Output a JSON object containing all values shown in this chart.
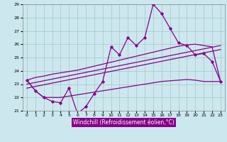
{
  "xlabel": "Windchill (Refroidissement éolien,°C)",
  "background_color": "#cce8ee",
  "grid_color": "#aacccc",
  "line_color": "#880088",
  "xlim": [
    -0.5,
    23.5
  ],
  "ylim": [
    21,
    29
  ],
  "yticks": [
    21,
    22,
    23,
    24,
    25,
    26,
    27,
    28,
    29
  ],
  "xticks": [
    0,
    1,
    2,
    3,
    4,
    5,
    6,
    7,
    8,
    9,
    10,
    11,
    12,
    13,
    14,
    15,
    16,
    17,
    18,
    19,
    20,
    21,
    22,
    23
  ],
  "hours": [
    0,
    1,
    2,
    3,
    4,
    5,
    6,
    7,
    8,
    9,
    10,
    11,
    12,
    13,
    14,
    15,
    16,
    17,
    18,
    19,
    20,
    21,
    22,
    23
  ],
  "windchill": [
    23.3,
    22.5,
    22.0,
    21.7,
    21.6,
    22.7,
    20.8,
    21.3,
    22.3,
    23.2,
    25.8,
    25.2,
    26.5,
    25.9,
    26.5,
    29.0,
    28.3,
    27.2,
    26.1,
    25.9,
    25.2,
    25.3,
    24.7,
    23.2
  ],
  "upper_band": [
    23.3,
    23.5,
    23.6,
    23.75,
    23.85,
    23.95,
    24.05,
    24.2,
    24.35,
    24.5,
    24.65,
    24.8,
    24.95,
    25.1,
    25.25,
    25.4,
    25.55,
    25.7,
    25.85,
    25.95,
    26.0,
    25.9,
    25.8,
    23.2
  ],
  "lower_band": [
    23.3,
    22.5,
    22.0,
    22.0,
    22.0,
    22.1,
    22.2,
    22.3,
    22.4,
    22.5,
    22.6,
    22.7,
    22.8,
    22.9,
    23.0,
    23.1,
    23.2,
    23.25,
    23.3,
    23.35,
    23.3,
    23.2,
    23.2,
    23.2
  ],
  "trend1_x": [
    0,
    23
  ],
  "trend1_y": [
    23.0,
    25.9
  ],
  "trend2_x": [
    0,
    23
  ],
  "trend2_y": [
    22.7,
    25.6
  ]
}
